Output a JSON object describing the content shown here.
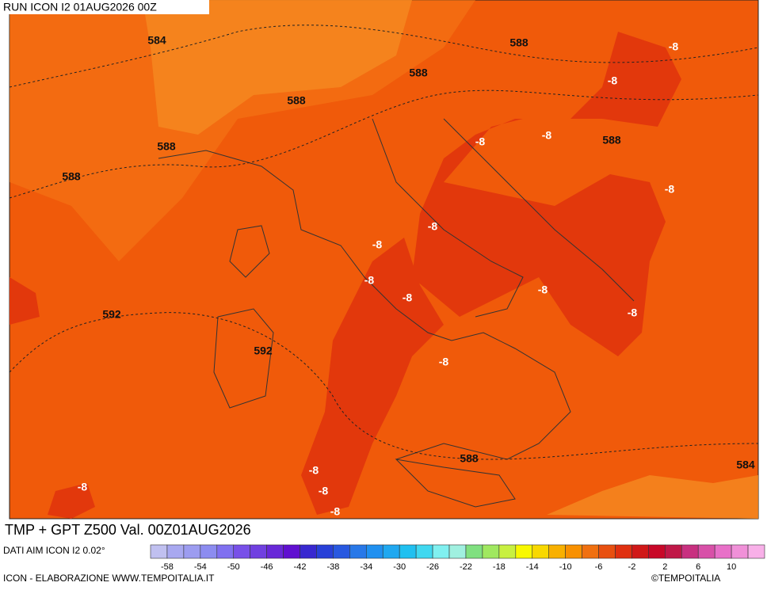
{
  "header": {
    "run": "RUN ICON I2 01AUG2026 00Z"
  },
  "map": {
    "labels": [
      {
        "text": "584",
        "tone": "dark"
      },
      {
        "text": "588",
        "tone": "dark"
      },
      {
        "text": "-8",
        "tone": "light"
      },
      {
        "text": "588",
        "tone": "dark"
      },
      {
        "text": "-8",
        "tone": "light"
      },
      {
        "text": "588",
        "tone": "dark"
      },
      {
        "text": "-8",
        "tone": "light"
      },
      {
        "text": "-8",
        "tone": "light"
      },
      {
        "text": "588",
        "tone": "dark"
      },
      {
        "text": "588",
        "tone": "dark"
      },
      {
        "text": "588",
        "tone": "dark"
      },
      {
        "text": "-8",
        "tone": "light"
      },
      {
        "text": "-8",
        "tone": "light"
      },
      {
        "text": "-8",
        "tone": "light"
      },
      {
        "text": "-8",
        "tone": "light"
      },
      {
        "text": "-8",
        "tone": "light"
      },
      {
        "text": "-8",
        "tone": "light"
      },
      {
        "text": "-8",
        "tone": "light"
      },
      {
        "text": "592",
        "tone": "dark"
      },
      {
        "text": "592",
        "tone": "dark"
      },
      {
        "text": "-8",
        "tone": "light"
      },
      {
        "text": "588",
        "tone": "dark"
      },
      {
        "text": "584",
        "tone": "dark"
      },
      {
        "text": "-8",
        "tone": "light"
      },
      {
        "text": "-8",
        "tone": "light"
      },
      {
        "text": "-8",
        "tone": "light"
      },
      {
        "text": "-8",
        "tone": "light"
      }
    ]
  },
  "footer": {
    "title": "TMP + GPT Z500 Val. 00Z01AUG2026",
    "source": "DATI AIM ICON I2 0.02°",
    "credit": "ICON - ELABORAZIONE WWW.TEMPOITALIA.IT",
    "copyright": "©TEMPOITALIA"
  },
  "colorbar": {
    "colors": [
      "#c0c0f0",
      "#a8a8f0",
      "#9c9cf0",
      "#8c8cf0",
      "#8070f0",
      "#7850e8",
      "#7040e0",
      "#6828d8",
      "#6010d0",
      "#3828d0",
      "#2840d8",
      "#2858e0",
      "#2878e8",
      "#2090f0",
      "#20a8f0",
      "#20c0f0",
      "#40d8f0",
      "#80f0f0",
      "#a0f0e0",
      "#80e080",
      "#a0e860",
      "#c8f040",
      "#f8f800",
      "#f8d800",
      "#f8b000",
      "#f89000",
      "#f07010",
      "#e85010",
      "#e03010",
      "#d01818",
      "#c80828",
      "#c01848",
      "#c83080",
      "#d850a8",
      "#e870c8",
      "#f090d8",
      "#f8b0e8"
    ],
    "ticks": [
      -58,
      -54,
      -50,
      -46,
      -42,
      -38,
      -34,
      -30,
      -26,
      -22,
      -18,
      -14,
      -10,
      -6,
      -2,
      2,
      6,
      10
    ]
  }
}
